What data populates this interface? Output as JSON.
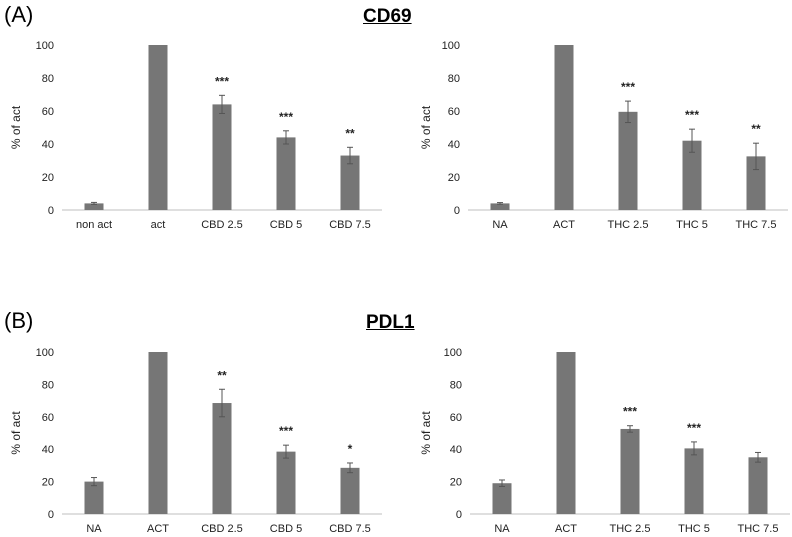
{
  "panels": [
    {
      "letter": "(A)",
      "title": "CD69"
    },
    {
      "letter": "(B)",
      "title": "PDL1"
    }
  ],
  "colors": {
    "bar": "#767676",
    "error": "#555555",
    "axis": "#bfbfbf"
  },
  "chart_data": [
    {
      "type": "bar",
      "categories": [
        "non act",
        "act",
        "CBD 2.5",
        "CBD 5",
        "CBD 7.5"
      ],
      "values": [
        4,
        100,
        64,
        44,
        33
      ],
      "errors": [
        0.6,
        0,
        5.5,
        4,
        5
      ],
      "significance": [
        "",
        "",
        "***",
        "***",
        "**"
      ],
      "ylabel": "% of act",
      "ylim": [
        0,
        100
      ],
      "yticks": [
        0,
        20,
        40,
        60,
        80,
        100
      ]
    },
    {
      "type": "bar",
      "categories": [
        "NA",
        "ACT",
        "THC 2.5",
        "THC 5",
        "THC 7.5"
      ],
      "values": [
        4,
        100,
        59.5,
        42,
        32.5
      ],
      "errors": [
        0.5,
        0,
        6.5,
        7,
        8
      ],
      "significance": [
        "",
        "",
        "***",
        "***",
        "**"
      ],
      "ylabel": "% of act",
      "ylim": [
        0,
        100
      ],
      "yticks": [
        0,
        20,
        40,
        60,
        80,
        100
      ]
    },
    {
      "type": "bar",
      "categories": [
        "NA",
        "ACT",
        "CBD 2.5",
        "CBD 5",
        "CBD 7.5"
      ],
      "values": [
        20,
        100,
        68.5,
        38.5,
        28.5
      ],
      "errors": [
        2.5,
        0,
        8.5,
        4,
        3
      ],
      "significance": [
        "",
        "",
        "**",
        "***",
        "*"
      ],
      "ylabel": "% of act",
      "ylim": [
        0,
        100
      ],
      "yticks": [
        0,
        20,
        40,
        60,
        80,
        100
      ]
    },
    {
      "type": "bar",
      "categories": [
        "NA",
        "ACT",
        "THC 2.5",
        "THC 5",
        "THC 7.5"
      ],
      "values": [
        19,
        100,
        52.5,
        40.5,
        35
      ],
      "errors": [
        2,
        0,
        2,
        4,
        3
      ],
      "significance": [
        "",
        "",
        "***",
        "***",
        ""
      ],
      "ylabel": "% of act",
      "ylim": [
        0,
        100
      ],
      "yticks": [
        0,
        20,
        40,
        60,
        80,
        100
      ]
    }
  ]
}
